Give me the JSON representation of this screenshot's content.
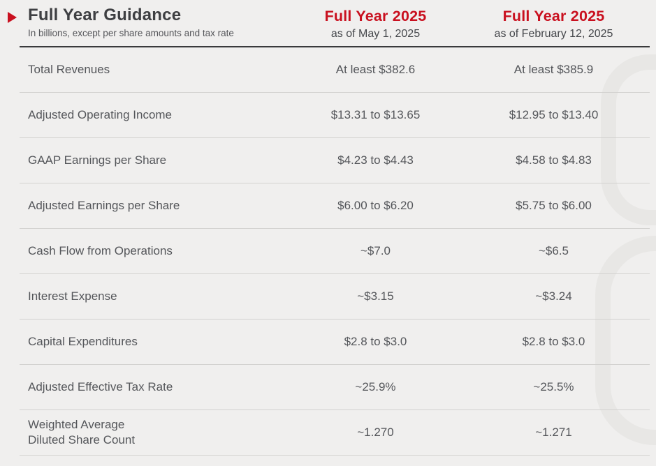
{
  "page": {
    "background_color": "#f0efee",
    "accent_red": "#c9101f",
    "title_color": "#3e3f42",
    "body_text_color": "#54565a",
    "separator_color": "#d3d2d0",
    "header_rule_color": "#3a3a3c"
  },
  "header": {
    "title": "Full Year Guidance",
    "subtitle": "In billions, except per share amounts and tax rate",
    "bullet_icon": "right-pointing-triangle",
    "columns": [
      {
        "title": "Full Year 2025",
        "subtitle": "as of May 1, 2025"
      },
      {
        "title": "Full Year 2025",
        "subtitle": "as of February 12, 2025"
      }
    ]
  },
  "table": {
    "column_keys": [
      "metric",
      "as_of_may_1_2025",
      "as_of_february_12_2025"
    ],
    "rows": [
      {
        "label": "Total Revenues",
        "may": "At least $382.6",
        "feb": "At least $385.9"
      },
      {
        "label": "Adjusted Operating Income",
        "may": "$13.31 to $13.65",
        "feb": "$12.95 to $13.40"
      },
      {
        "label": "GAAP Earnings per Share",
        "may": "$4.23 to $4.43",
        "feb": "$4.58 to $4.83"
      },
      {
        "label": "Adjusted Earnings per Share",
        "may": "$6.00 to $6.20",
        "feb": "$5.75 to $6.00"
      },
      {
        "label": "Cash Flow from Operations",
        "may": "~$7.0",
        "feb": "~$6.5"
      },
      {
        "label": "Interest Expense",
        "may": "~$3.15",
        "feb": "~$3.24"
      },
      {
        "label": "Capital Expenditures",
        "may": "$2.8 to $3.0",
        "feb": "$2.8 to $3.0"
      },
      {
        "label": "Adjusted Effective Tax Rate",
        "may": "~25.9%",
        "feb": "~25.5%"
      },
      {
        "label": "Weighted Average\nDiluted Share Count",
        "may": "~1.270",
        "feb": "~1.271"
      }
    ]
  }
}
